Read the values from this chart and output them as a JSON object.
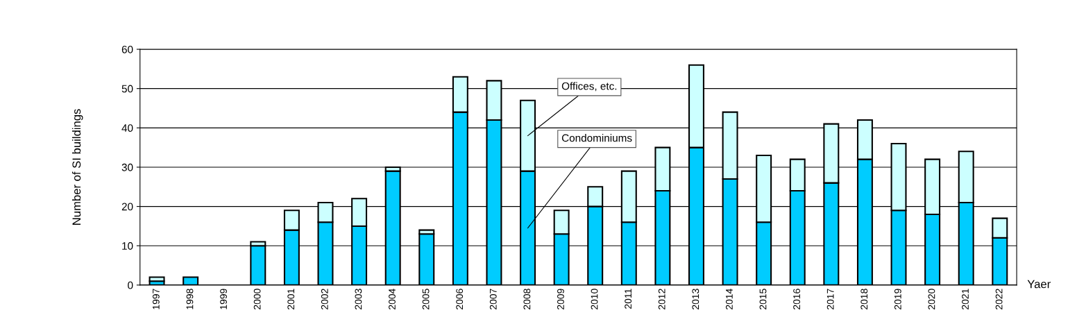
{
  "chart_data": {
    "type": "bar",
    "stacked": true,
    "xlabel": "Yaer",
    "ylabel": "Number of SI buildings",
    "categories": [
      "1997",
      "1998",
      "1999",
      "2000",
      "2001",
      "2002",
      "2003",
      "2004",
      "2005",
      "2006",
      "2007",
      "2008",
      "2009",
      "2010",
      "2011",
      "2012",
      "2013",
      "2014",
      "2015",
      "2016",
      "2017",
      "2018",
      "2019",
      "2020",
      "2021",
      "2022"
    ],
    "series": [
      {
        "name": "Condominiums",
        "color": "#00ccff",
        "values": [
          1,
          2,
          0,
          10,
          14,
          16,
          15,
          29,
          13,
          44,
          42,
          29,
          13,
          20,
          16,
          24,
          35,
          27,
          16,
          24,
          26,
          32,
          19,
          18,
          21,
          12
        ]
      },
      {
        "name": "Offices, etc.",
        "color": "#ccffff",
        "values": [
          1,
          0,
          0,
          1,
          5,
          5,
          7,
          1,
          1,
          9,
          10,
          18,
          6,
          5,
          13,
          11,
          21,
          17,
          17,
          8,
          15,
          10,
          17,
          14,
          13,
          5
        ]
      }
    ],
    "ylim": [
      0,
      60
    ],
    "yticks": [
      0,
      10,
      20,
      30,
      40,
      50,
      60
    ],
    "grid": "y"
  }
}
